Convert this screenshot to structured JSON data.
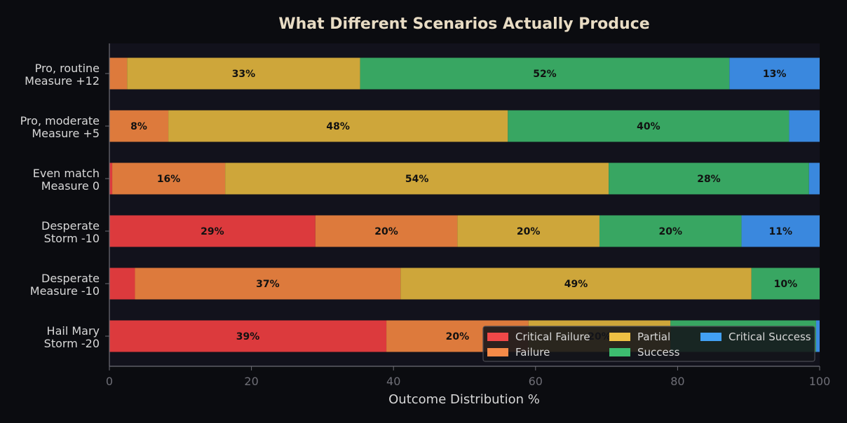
{
  "chart_data": {
    "type": "bar",
    "orientation": "horizontal",
    "stacked": true,
    "title": "What Different Scenarios Actually Produce",
    "xlabel": "Outcome Distribution %",
    "ylabel": "",
    "xlim": [
      0,
      100
    ],
    "xticks": [
      0,
      20,
      40,
      60,
      80,
      100
    ],
    "categories": [
      [
        "Pro, routine",
        "Measure +12"
      ],
      [
        "Pro, moderate",
        "Measure +5"
      ],
      [
        "Even match",
        "Measure 0"
      ],
      [
        "Desperate",
        "Storm -10"
      ],
      [
        "Desperate",
        "Measure -10"
      ],
      [
        "Hail Mary",
        "Storm -20"
      ]
    ],
    "series": [
      {
        "name": "Critical Failure",
        "color": "#dc3a3d",
        "values": [
          0,
          0,
          0.4,
          29,
          3.6,
          39
        ]
      },
      {
        "name": "Failure",
        "color": "#dd7a3c",
        "values": [
          2.5,
          8.3,
          15.9,
          20,
          37.4,
          20
        ]
      },
      {
        "name": "Partial",
        "color": "#cea63a",
        "values": [
          32.8,
          47.8,
          54,
          20,
          49.4,
          20
        ]
      },
      {
        "name": "Success",
        "color": "#38a662",
        "values": [
          52,
          39.6,
          28.2,
          20,
          9.6,
          20.5
        ]
      },
      {
        "name": "Critical Success",
        "color": "#3a88de",
        "values": [
          12.7,
          4.3,
          1.5,
          11,
          0,
          0.5
        ]
      }
    ],
    "data_labels": [
      [
        "",
        "",
        "33%",
        "52%",
        "13%"
      ],
      [
        "",
        "8%",
        "48%",
        "40%",
        ""
      ],
      [
        "",
        "16%",
        "54%",
        "28%",
        ""
      ],
      [
        "29%",
        "20%",
        "20%",
        "20%",
        "11%"
      ],
      [
        "",
        "37%",
        "49%",
        "10%",
        ""
      ],
      [
        "39%",
        "20%",
        "20%",
        "",
        ""
      ]
    ],
    "legend": {
      "location": "lower-right",
      "columns": 3,
      "entries": [
        "Critical Failure",
        "Failure",
        "Partial",
        "Success",
        "Critical Success"
      ],
      "legend_colors": [
        "#f04848",
        "#f58a48",
        "#eec044",
        "#3dbd70",
        "#42a0f2"
      ]
    },
    "background": "#0b0c10",
    "plot_background": "#12121c"
  }
}
